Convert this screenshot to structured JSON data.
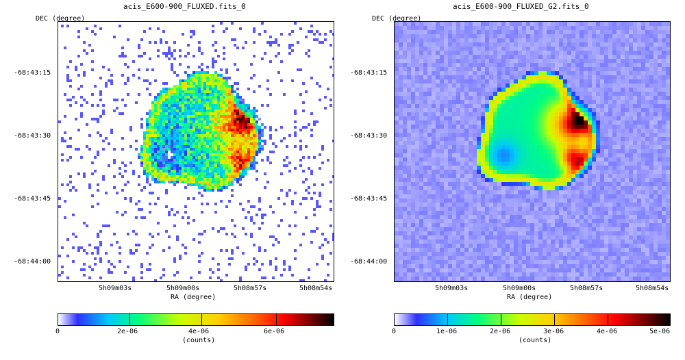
{
  "panels": [
    {
      "title": "acis_E600-900_FLUXED.fits_0",
      "y_axis_label": "DEC (degree)",
      "x_axis_label": "RA (degree)",
      "y_ticks": [
        "-68:43:15",
        "-68:43:30",
        "-68:43:45",
        "-68:44:00"
      ],
      "x_ticks": [
        "5h09m03s",
        "5h09m00s",
        "5h08m57s",
        "5h08m54s"
      ],
      "colorbar_ticks": [
        "0",
        "2e-06",
        "4e-06",
        "6e-06"
      ],
      "colorbar_label": "(counts)",
      "style": "raw counts, pixelated"
    },
    {
      "title": "acis_E600-900_FLUXED_G2.fits_0",
      "y_axis_label": "DEC (degree)",
      "x_axis_label": "RA (degree)",
      "y_ticks": [
        "-68:43:15",
        "-68:43:30",
        "-68:43:45",
        "-68:44:00"
      ],
      "x_ticks": [
        "5h09m03s",
        "5h09m00s",
        "5h08m57s",
        "5h08m54s"
      ],
      "colorbar_ticks": [
        "0",
        "1e-06",
        "2e-06",
        "3e-06",
        "4e-06",
        "5e-06"
      ],
      "colorbar_label": "(counts)",
      "style": "gaussian smoothed"
    }
  ],
  "colormap": [
    "#ffffff",
    "#3030ff",
    "#00c8ff",
    "#00ff80",
    "#c8ff00",
    "#ffd000",
    "#ff7000",
    "#ff0000",
    "#800000",
    "#000000"
  ]
}
